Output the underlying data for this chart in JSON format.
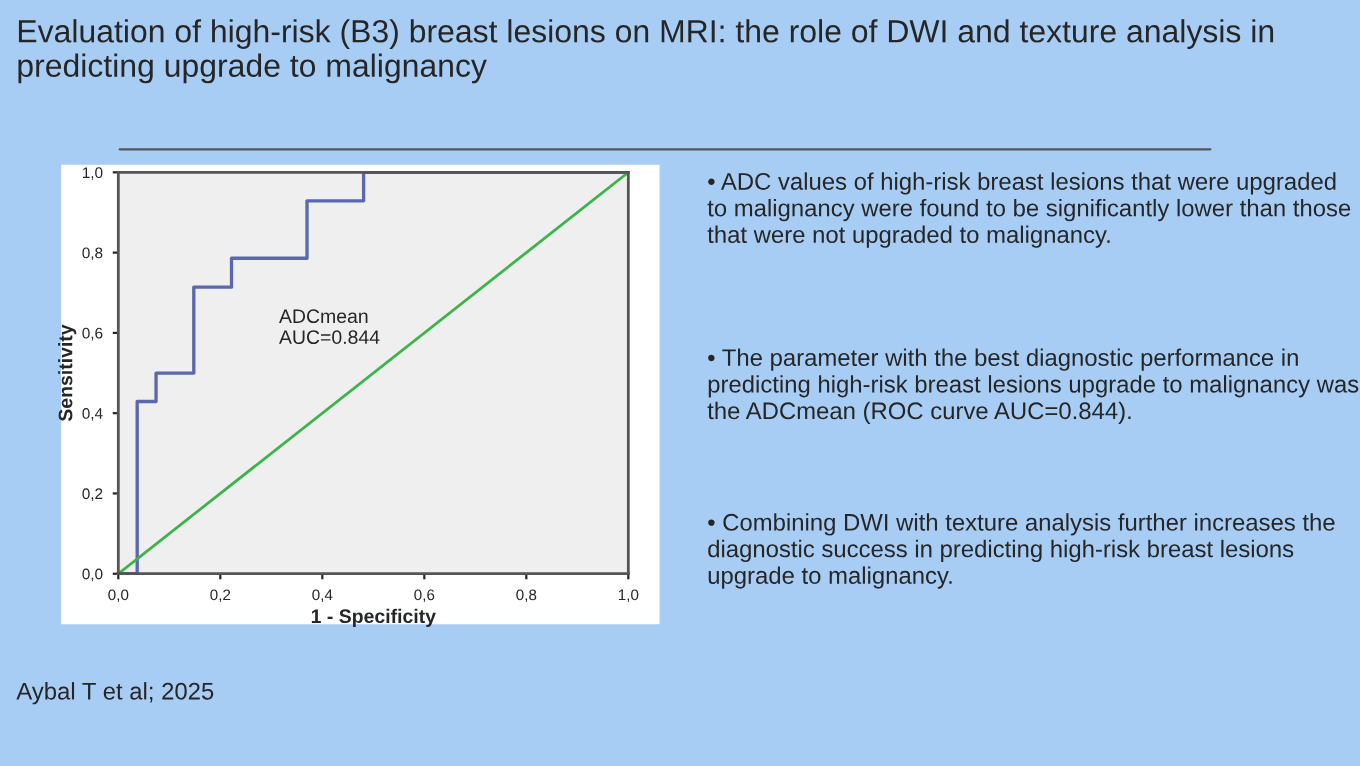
{
  "chart_data": {
    "type": "step",
    "title": "Evaluation of high-risk (B3) breast lesions on MRI: the role of DWI and texture analysis in predicting upgrade to malignancy",
    "xlabel": "1 - Specificity",
    "ylabel": "Sensitivity",
    "series": [
      {
        "color": "#5b68ad",
        "x": [
          0,
          0.037,
          0.074,
          0.148,
          0.222,
          0.37,
          0.481,
          1.0
        ],
        "values": [
          0,
          0.429,
          0.5,
          0.714,
          0.786,
          0.929,
          1.0,
          1.0
        ]
      },
      {
        "type": "line",
        "color": "#3cb44b",
        "x": [
          0,
          1.0
        ],
        "values": [
          0,
          1.0
        ]
      }
    ],
    "xlim": [
      0,
      1.0
    ],
    "ylim": [
      0,
      1.0
    ],
    "xticks": [
      {
        "value": 0,
        "label": "0,0"
      },
      {
        "value": 0.2,
        "label": "0,2"
      },
      {
        "value": 0.4,
        "label": "0,4"
      },
      {
        "value": 0.6,
        "label": "0,6"
      },
      {
        "value": 0.8,
        "label": "0,8"
      },
      {
        "value": 1.0,
        "label": "1,0"
      }
    ],
    "yticks": [
      {
        "value": 0,
        "label": "0,0"
      },
      {
        "value": 0.2,
        "label": "0,2"
      },
      {
        "value": 0.4,
        "label": "0,4"
      },
      {
        "value": 0.6,
        "label": "0,6"
      },
      {
        "value": 0.8,
        "label": "0,8"
      },
      {
        "value": 1.0,
        "label": "1,0"
      }
    ],
    "grid": false,
    "legend": false,
    "annotations": [
      "ADCmean\nAUC=0.844",
      "• ADC values of high-risk breast lesions that were upgraded to malignancy were found to be significantly lower than those that were not upgraded to malignancy.",
      "• The parameter with the best diagnostic performance in predicting high-risk breast lesions upgrade to malignancy was the ADCmean (ROC curve AUC=0.844).",
      "• Combining DWI with texture analysis further increases the diagnostic success in predicting high-risk breast lesions upgrade to malignancy.",
      "Aybal T et al; 2025"
    ]
  }
}
